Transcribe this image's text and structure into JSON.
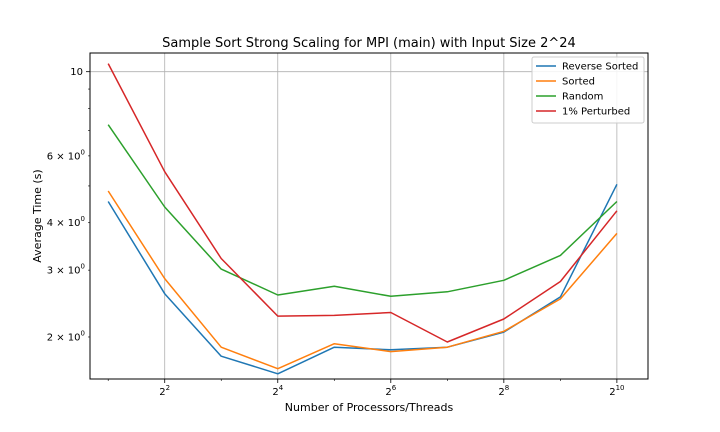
{
  "chart_data": {
    "type": "line",
    "title": "Sample Sort Strong Scaling for MPI (main) with Input Size 2^24",
    "xlabel": "Number of Processors/Threads",
    "ylabel": "Average Time (s)",
    "x_scale": "log2",
    "y_scale": "log",
    "grid": true,
    "legend_position": "top-right",
    "x": [
      2,
      4,
      8,
      16,
      32,
      64,
      128,
      256,
      512,
      1024
    ],
    "xlim": [
      1.6,
      1500
    ],
    "ylim": [
      1.55,
      11.2
    ],
    "x_ticks": [
      {
        "value": 4,
        "base": "2",
        "exp": "2"
      },
      {
        "value": 16,
        "base": "2",
        "exp": "4"
      },
      {
        "value": 64,
        "base": "2",
        "exp": "6"
      },
      {
        "value": 256,
        "base": "2",
        "exp": "8"
      },
      {
        "value": 1024,
        "base": "2",
        "exp": "10"
      }
    ],
    "y_ticks_major": [
      {
        "value": 10,
        "label": "10"
      }
    ],
    "y_ticks_minor_labeled": [
      {
        "value": 2,
        "base": "2 × 10",
        "exp": "0"
      },
      {
        "value": 3,
        "base": "3 × 10",
        "exp": "0"
      },
      {
        "value": 4,
        "base": "4 × 10",
        "exp": "0"
      },
      {
        "value": 6,
        "base": "6 × 10",
        "exp": "0"
      }
    ],
    "series": [
      {
        "name": "Reverse Sorted",
        "color": "#1f77b4",
        "values": [
          4.55,
          2.6,
          1.78,
          1.6,
          1.88,
          1.85,
          1.88,
          2.06,
          2.55,
          5.05
        ]
      },
      {
        "name": "Sorted",
        "color": "#ff7f0e",
        "values": [
          4.85,
          2.85,
          1.88,
          1.65,
          1.92,
          1.83,
          1.88,
          2.07,
          2.52,
          3.75
        ]
      },
      {
        "name": "Random",
        "color": "#2ca02c",
        "values": [
          7.25,
          4.4,
          3.02,
          2.58,
          2.72,
          2.56,
          2.63,
          2.82,
          3.28,
          4.55
        ]
      },
      {
        "name": "1% Perturbed",
        "color": "#d62728",
        "values": [
          10.5,
          5.45,
          3.22,
          2.27,
          2.28,
          2.32,
          1.94,
          2.23,
          2.8,
          4.3
        ]
      }
    ]
  }
}
